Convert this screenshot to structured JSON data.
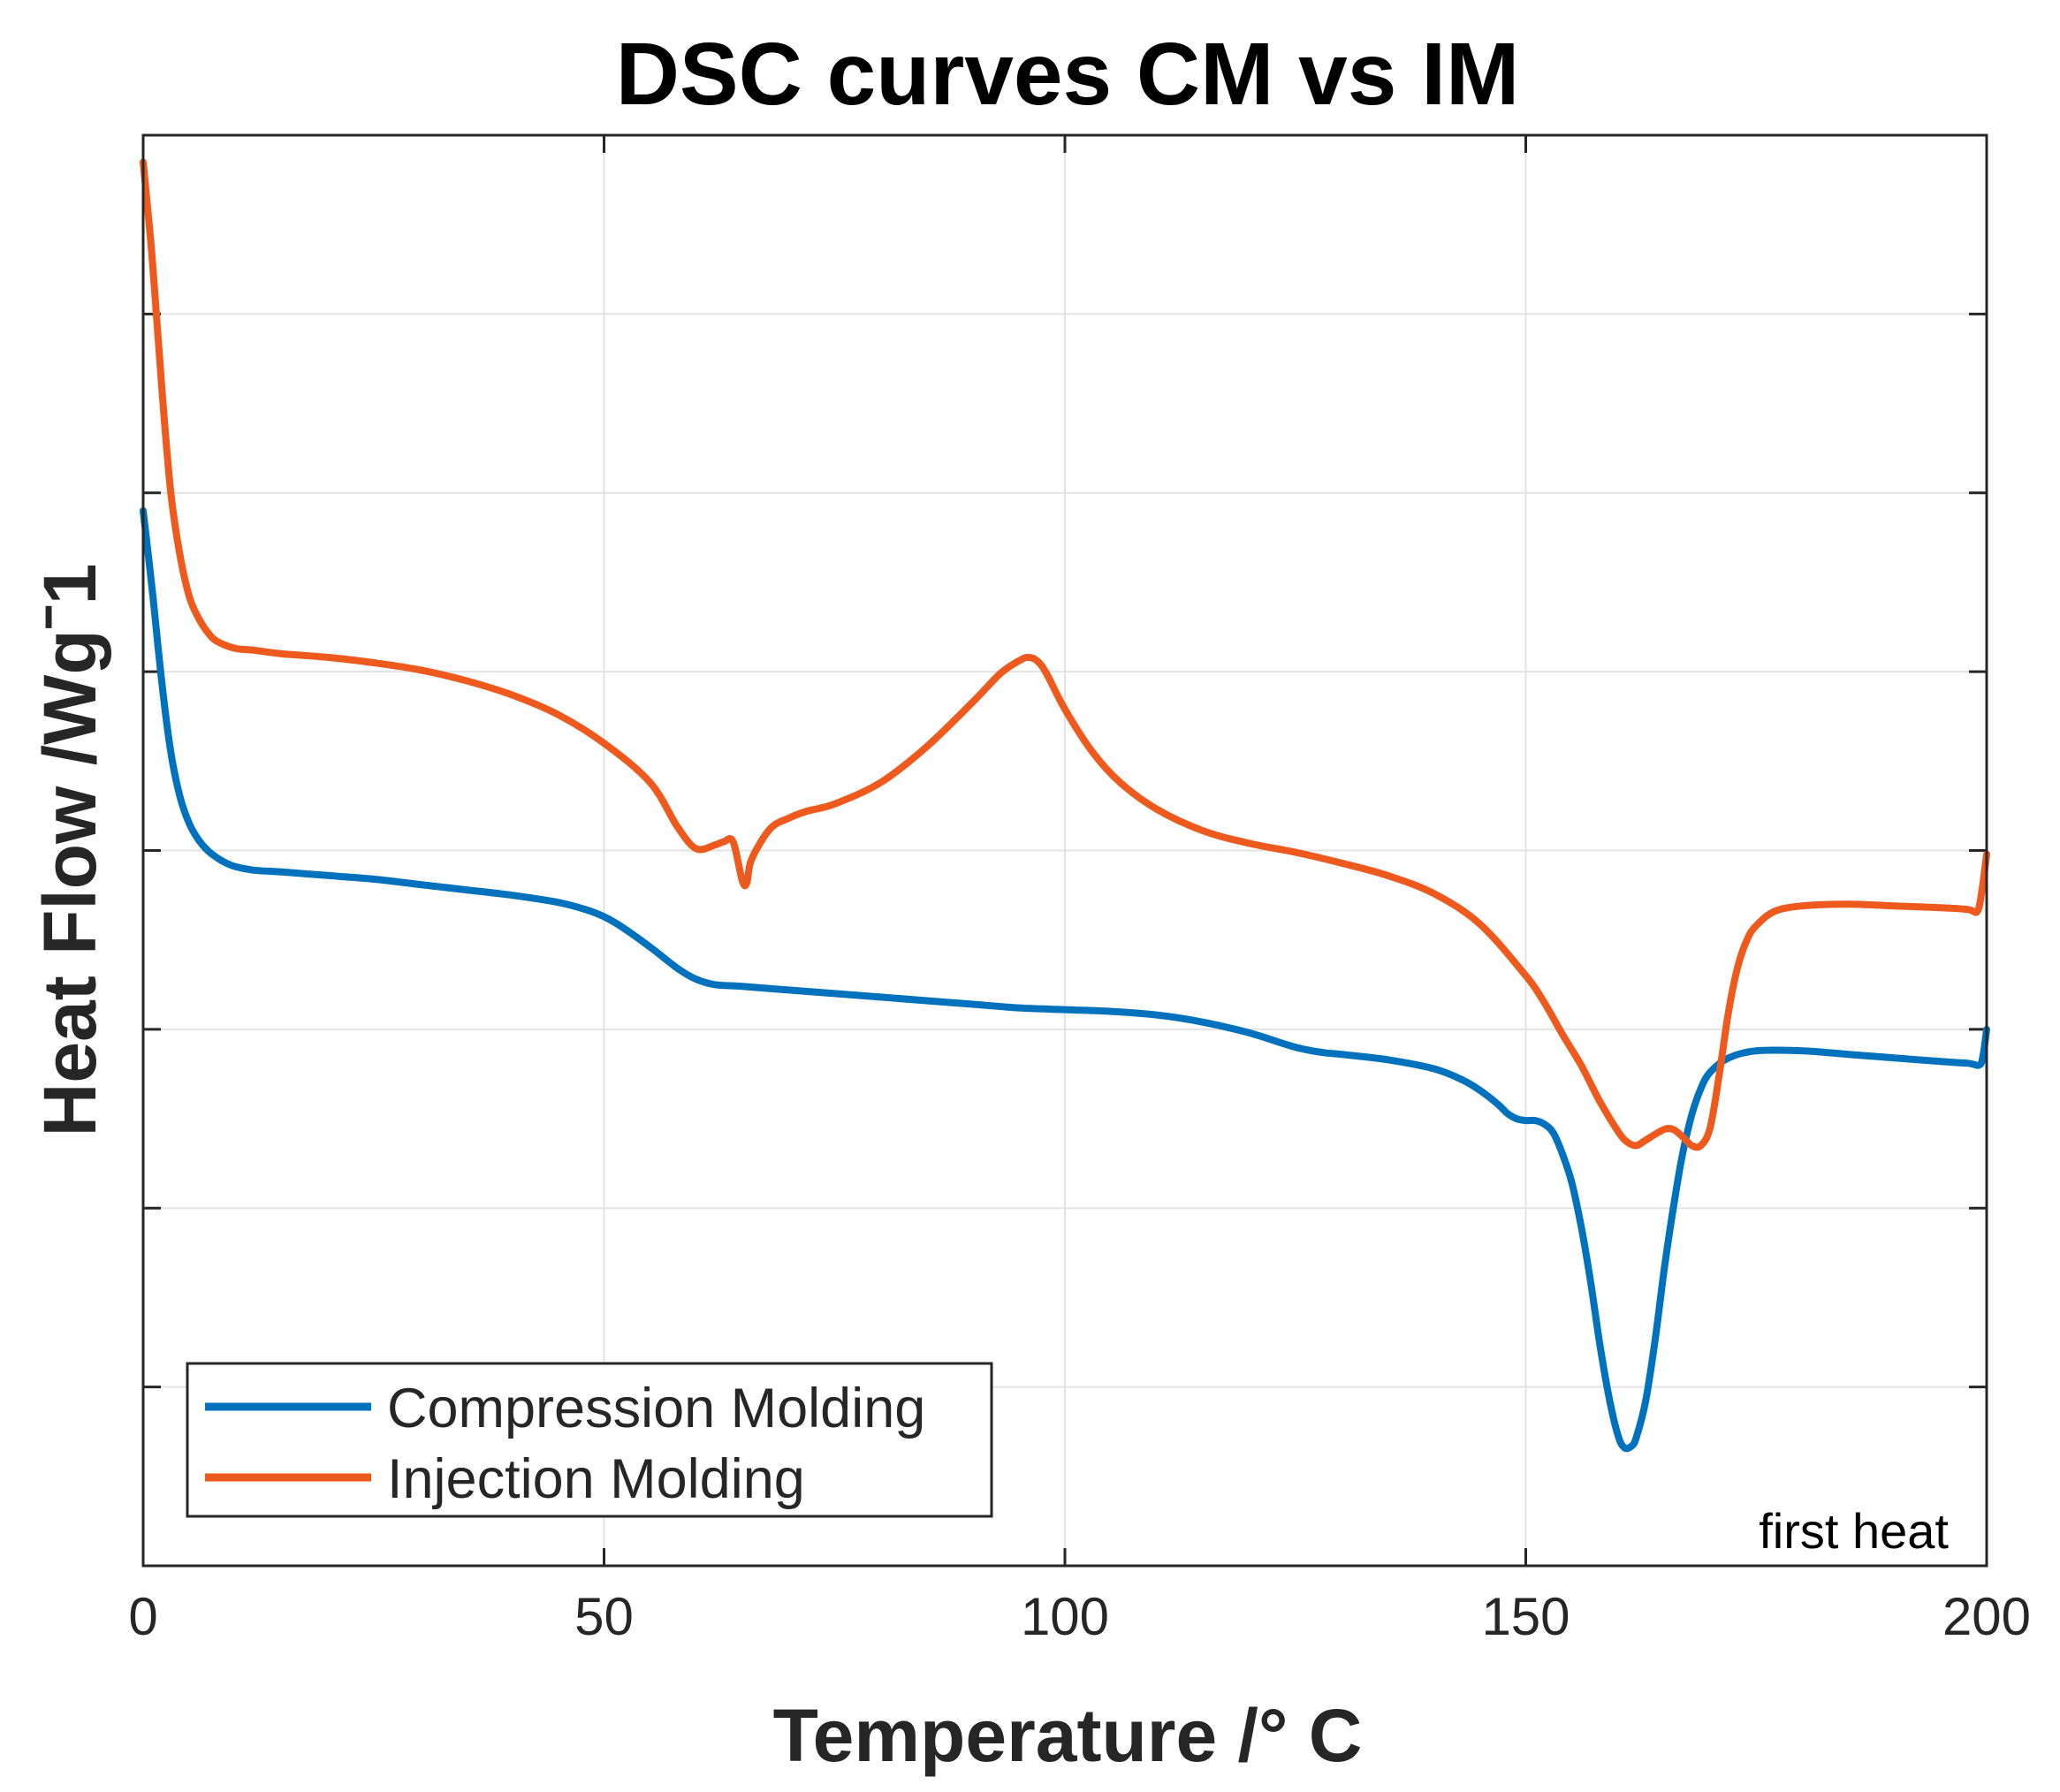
{
  "chart_data": {
    "type": "line",
    "title": "DSC curves CM vs IM",
    "xlabel": "Temperature /° C",
    "ylabel": "Heat Flow /Wgˉ1",
    "xlim": [
      0,
      200
    ],
    "ylim": [
      0,
      8
    ],
    "xticks": [
      0,
      50,
      100,
      150,
      200
    ],
    "xtick_labels": [
      "0",
      "50",
      "100",
      "150",
      "200"
    ],
    "yticks": [
      1,
      2,
      3,
      4,
      5,
      6,
      7
    ],
    "yticks_labeled": false,
    "grid": true,
    "legend_position": "bottom-left",
    "annotation": "first heat",
    "series": [
      {
        "name": "Compression Molding",
        "color": "#0072BD",
        "x": [
          0,
          1,
          2,
          3,
          4,
          5,
          6,
          7,
          8,
          9,
          10,
          12,
          15,
          20,
          25,
          30,
          35,
          40,
          45,
          48,
          50,
          52,
          55,
          58,
          60,
          62,
          65,
          70,
          75,
          80,
          85,
          90,
          95,
          100,
          105,
          110,
          115,
          120,
          125,
          128,
          130,
          135,
          140,
          143,
          145,
          147,
          148,
          149,
          150,
          151,
          152,
          153,
          154,
          155,
          156,
          157,
          158,
          159,
          160,
          160.7,
          161.5,
          162,
          163,
          164,
          165,
          166,
          167,
          168,
          169,
          170,
          172,
          175,
          180,
          185,
          190,
          195,
          198,
          199.2,
          199.6,
          200
        ],
        "values": [
          5.9,
          5.45,
          4.95,
          4.55,
          4.3,
          4.15,
          4.06,
          4.0,
          3.96,
          3.93,
          3.91,
          3.89,
          3.88,
          3.86,
          3.84,
          3.81,
          3.78,
          3.75,
          3.71,
          3.67,
          3.63,
          3.57,
          3.46,
          3.34,
          3.28,
          3.25,
          3.24,
          3.22,
          3.2,
          3.18,
          3.16,
          3.14,
          3.12,
          3.11,
          3.1,
          3.08,
          3.04,
          2.98,
          2.9,
          2.87,
          2.86,
          2.83,
          2.78,
          2.72,
          2.66,
          2.58,
          2.53,
          2.5,
          2.49,
          2.49,
          2.47,
          2.42,
          2.3,
          2.14,
          1.9,
          1.6,
          1.25,
          0.95,
          0.73,
          0.66,
          0.67,
          0.72,
          0.92,
          1.25,
          1.65,
          2.0,
          2.3,
          2.52,
          2.67,
          2.76,
          2.84,
          2.88,
          2.88,
          2.86,
          2.84,
          2.82,
          2.81,
          2.8,
          2.85,
          3.0
        ]
      },
      {
        "name": "Injection Molding",
        "color": "#EE5A1E",
        "x": [
          0,
          1,
          2,
          3,
          4,
          5,
          6,
          7,
          8,
          10,
          12,
          15,
          20,
          25,
          30,
          35,
          40,
          45,
          50,
          55,
          58,
          60,
          62,
          63,
          64,
          65,
          65.5,
          66,
          68,
          70,
          72,
          75,
          80,
          85,
          90,
          93,
          95,
          96,
          97,
          98,
          100,
          103,
          106,
          110,
          115,
          120,
          125,
          130,
          135,
          140,
          145,
          150,
          152,
          154,
          156,
          158,
          160,
          161,
          162,
          163,
          165,
          166,
          167,
          168,
          169,
          170,
          171,
          172,
          173,
          174,
          175,
          177,
          180,
          185,
          190,
          195,
          198,
          199,
          199.5,
          200
        ],
        "values": [
          7.85,
          7.3,
          6.6,
          6.0,
          5.65,
          5.42,
          5.3,
          5.22,
          5.17,
          5.13,
          5.12,
          5.1,
          5.08,
          5.05,
          5.01,
          4.95,
          4.87,
          4.76,
          4.6,
          4.38,
          4.13,
          4.01,
          4.03,
          4.05,
          4.05,
          3.83,
          3.82,
          3.95,
          4.12,
          4.18,
          4.22,
          4.26,
          4.38,
          4.58,
          4.83,
          4.99,
          5.06,
          5.08,
          5.06,
          4.99,
          4.79,
          4.55,
          4.38,
          4.23,
          4.11,
          4.04,
          3.99,
          3.93,
          3.86,
          3.76,
          3.59,
          3.3,
          3.15,
          2.97,
          2.8,
          2.6,
          2.43,
          2.37,
          2.35,
          2.38,
          2.44,
          2.44,
          2.4,
          2.35,
          2.35,
          2.45,
          2.75,
          3.1,
          3.35,
          3.5,
          3.58,
          3.66,
          3.69,
          3.7,
          3.69,
          3.68,
          3.67,
          3.66,
          3.78,
          3.98
        ]
      }
    ]
  }
}
